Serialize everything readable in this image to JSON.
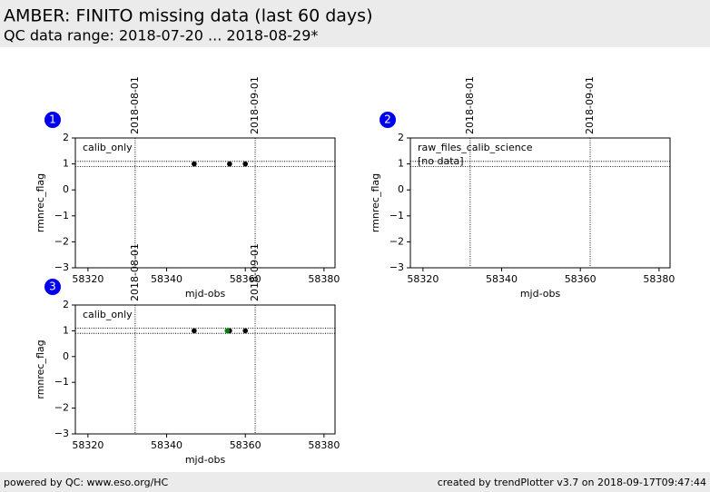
{
  "header": {
    "title": "AMBER: FINITO missing data (last 60 days)",
    "subtitle": "QC data range: 2018-07-20 ... 2018-08-29*"
  },
  "footer": {
    "left": "powered by QC: www.eso.org/HC",
    "right": "created by trendPlotter v3.7 on 2018-09-17T09:47:44"
  },
  "chart_data": [
    {
      "type": "scatter",
      "panel": "1",
      "label": "calib_only",
      "xlabel": "mjd-obs",
      "ylabel": "rmnrec_flag",
      "xlim": [
        58316.8,
        58382.8
      ],
      "ylim": [
        -3,
        2
      ],
      "xticks": [
        58320,
        58340,
        58360,
        58380
      ],
      "yticks": [
        {
          "value": -3,
          "label": "−3"
        },
        {
          "value": -2,
          "label": "−2"
        },
        {
          "value": -1,
          "label": "−1"
        },
        0,
        1,
        2
      ],
      "vlines": [
        {
          "value": 58332,
          "label": "2018-08-01"
        },
        {
          "value": 58362.5,
          "label": "2018-09-01"
        }
      ],
      "hlines": [
        0.9,
        1.1
      ],
      "series": [
        {
          "color": "#000000",
          "x": [
            58347,
            58356,
            58360
          ],
          "values": [
            1,
            1,
            1
          ]
        }
      ]
    },
    {
      "type": "scatter",
      "panel": "2",
      "label": "raw_files_calib_science",
      "note": "[no data]",
      "xlabel": "mjd-obs",
      "ylabel": "rmnrec_flag",
      "xlim": [
        58316.8,
        58382.8
      ],
      "ylim": [
        -3,
        2
      ],
      "xticks": [
        58320,
        58340,
        58360,
        58380
      ],
      "yticks": [
        {
          "value": -3,
          "label": "−3"
        },
        {
          "value": -2,
          "label": "−2"
        },
        {
          "value": -1,
          "label": "−1"
        },
        0,
        1,
        2
      ],
      "vlines": [
        {
          "value": 58332,
          "label": "2018-08-01"
        },
        {
          "value": 58362.5,
          "label": "2018-09-01"
        }
      ],
      "hlines": [
        0.9,
        1.1
      ],
      "series": []
    },
    {
      "type": "scatter",
      "panel": "3",
      "label": "calib_only",
      "xlabel": "mjd-obs",
      "ylabel": "rmnrec_flag",
      "xlim": [
        58316.8,
        58382.8
      ],
      "ylim": [
        -3,
        2
      ],
      "xticks": [
        58320,
        58340,
        58360,
        58380
      ],
      "yticks": [
        {
          "value": -3,
          "label": "−3"
        },
        {
          "value": -2,
          "label": "−2"
        },
        {
          "value": -1,
          "label": "−1"
        },
        0,
        1,
        2
      ],
      "vlines": [
        {
          "value": 58332,
          "label": "2018-08-01"
        },
        {
          "value": 58362.5,
          "label": "2018-09-01"
        }
      ],
      "hlines": [
        0.9,
        1.1
      ],
      "series": [
        {
          "color": "#000000",
          "x": [
            58347,
            58356,
            58360
          ],
          "values": [
            1,
            1,
            1
          ]
        },
        {
          "color": "#008000",
          "x": [
            58355.4
          ],
          "values": [
            1
          ]
        }
      ]
    }
  ]
}
